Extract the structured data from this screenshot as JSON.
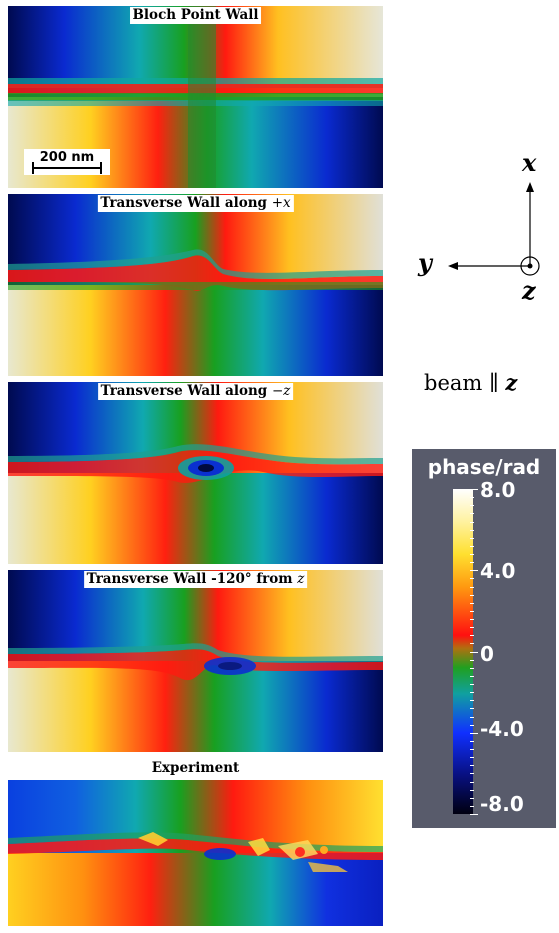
{
  "panels": [
    {
      "title_pre": "Bloch Point Wall",
      "title_math": "",
      "variant": "bpw"
    },
    {
      "title_pre": "Transverse Wall along ",
      "title_math": "+x",
      "variant": "tw1"
    },
    {
      "title_pre": "Transverse Wall along ",
      "title_math": "−z",
      "variant": "tw2"
    },
    {
      "title_pre": "Transverse Wall -120° from ",
      "title_math": "z",
      "variant": "tw3"
    },
    {
      "title_pre": "Experiment",
      "title_math": "",
      "variant": "exp"
    }
  ],
  "scalebar": {
    "label": "200 nm"
  },
  "axes": {
    "x": "x",
    "y": "y",
    "z": "z"
  },
  "beam": {
    "text": "beam ∥ ",
    "axis": "z"
  },
  "colorbar": {
    "title": "phase/rad",
    "ticks": [
      "8.0",
      "4.0",
      "0",
      "-4.0",
      "-8.0"
    ],
    "colors": [
      "#ffffff",
      "#ffe030",
      "#ff1010",
      "#20a020",
      "#1030ff",
      "#000010"
    ]
  }
}
